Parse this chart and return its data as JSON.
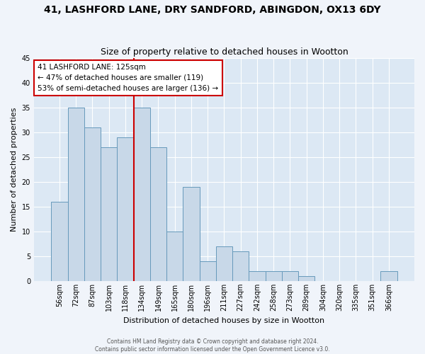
{
  "title1": "41, LASHFORD LANE, DRY SANDFORD, ABINGDON, OX13 6DY",
  "title2": "Size of property relative to detached houses in Wootton",
  "xlabel": "Distribution of detached houses by size in Wootton",
  "ylabel": "Number of detached properties",
  "bin_labels": [
    "56sqm",
    "72sqm",
    "87sqm",
    "103sqm",
    "118sqm",
    "134sqm",
    "149sqm",
    "165sqm",
    "180sqm",
    "196sqm",
    "211sqm",
    "227sqm",
    "242sqm",
    "258sqm",
    "273sqm",
    "289sqm",
    "304sqm",
    "320sqm",
    "335sqm",
    "351sqm",
    "366sqm"
  ],
  "bar_values": [
    16,
    35,
    31,
    27,
    29,
    35,
    27,
    10,
    19,
    4,
    7,
    6,
    2,
    2,
    2,
    1,
    0,
    0,
    0,
    0,
    2
  ],
  "bar_color": "#c8d8e8",
  "bar_edge_color": "#6699bb",
  "ylim": [
    0,
    45
  ],
  "yticks": [
    0,
    5,
    10,
    15,
    20,
    25,
    30,
    35,
    40,
    45
  ],
  "property_bin_index": 4,
  "annotation_line1": "41 LASHFORD LANE: 125sqm",
  "annotation_line2": "← 47% of detached houses are smaller (119)",
  "annotation_line3": "53% of semi-detached houses are larger (136) →",
  "red_line_color": "#cc0000",
  "annotation_box_facecolor": "#ffffff",
  "annotation_box_edgecolor": "#cc0000",
  "footer1": "Contains HM Land Registry data © Crown copyright and database right 2024.",
  "footer2": "Contains public sector information licensed under the Open Government Licence v3.0.",
  "fig_facecolor": "#f0f4fa",
  "axes_facecolor": "#dce8f4",
  "grid_color": "#ffffff",
  "title1_fontsize": 10,
  "title2_fontsize": 9,
  "xlabel_fontsize": 8,
  "ylabel_fontsize": 8,
  "tick_fontsize": 7,
  "footer_fontsize": 5.5
}
